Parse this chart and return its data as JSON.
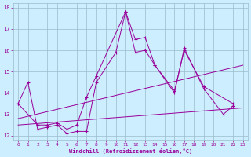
{
  "xlabel": "Windchill (Refroidissement éolien,°C)",
  "background_color": "#cceeff",
  "grid_color": "#99bbcc",
  "line_color": "#990099",
  "xlim": [
    -0.5,
    23.5
  ],
  "ylim": [
    11.8,
    18.2
  ],
  "xticks": [
    0,
    1,
    2,
    3,
    4,
    5,
    6,
    7,
    8,
    9,
    10,
    11,
    12,
    13,
    14,
    15,
    16,
    17,
    18,
    19,
    20,
    21,
    22,
    23
  ],
  "yticks": [
    12,
    13,
    14,
    15,
    16,
    17,
    18
  ],
  "series": [
    {
      "x": [
        0,
        1,
        2,
        3,
        4,
        5,
        6,
        7,
        8,
        10,
        11,
        12,
        13,
        14,
        16,
        17,
        19,
        21,
        22
      ],
      "y": [
        13.5,
        14.5,
        12.3,
        12.4,
        12.5,
        12.1,
        12.2,
        12.2,
        14.5,
        15.9,
        17.8,
        16.5,
        16.6,
        15.3,
        14.0,
        16.1,
        14.2,
        13.0,
        13.4
      ],
      "marker": true
    },
    {
      "x": [
        0,
        2,
        3,
        4,
        5,
        6,
        7,
        8,
        11,
        12,
        13,
        14,
        16,
        17,
        19,
        22
      ],
      "y": [
        13.5,
        12.5,
        12.5,
        12.6,
        12.3,
        12.5,
        13.8,
        14.8,
        17.8,
        15.9,
        16.0,
        15.3,
        14.1,
        16.0,
        14.3,
        13.5
      ],
      "marker": true
    },
    {
      "x": [
        0,
        23
      ],
      "y": [
        12.5,
        13.3
      ],
      "marker": false
    },
    {
      "x": [
        0,
        23
      ],
      "y": [
        12.8,
        15.3
      ],
      "marker": false
    }
  ]
}
